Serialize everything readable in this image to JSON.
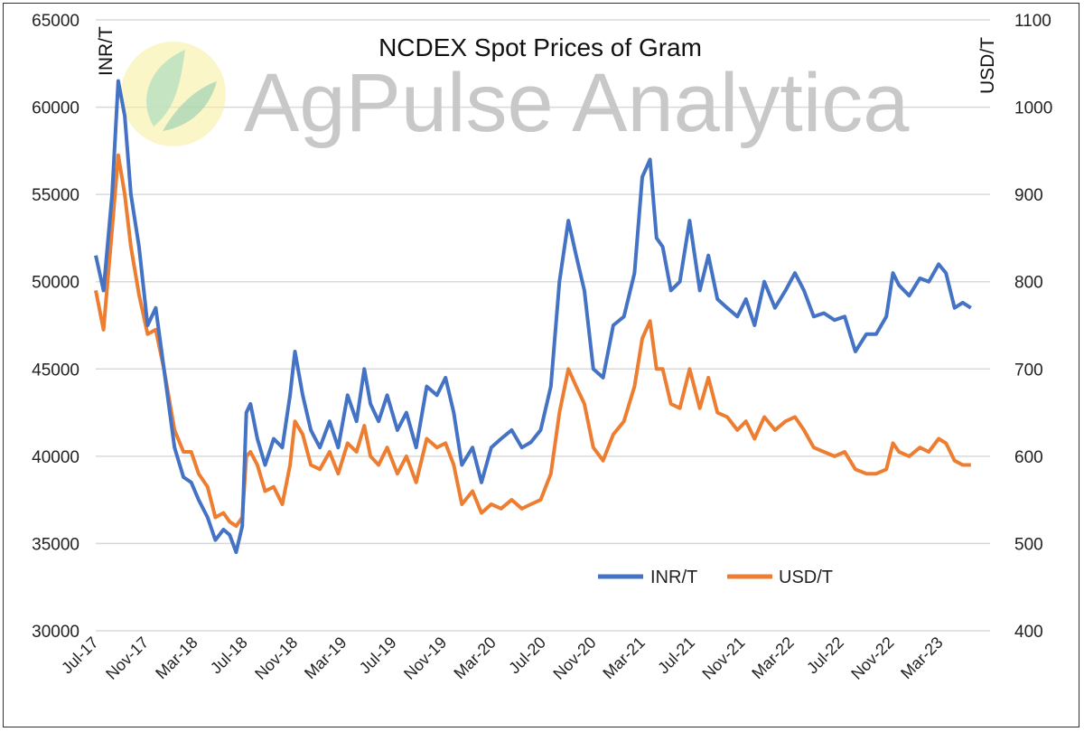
{
  "chart_data": {
    "type": "line",
    "title": "NCDEX Spot Prices of Gram",
    "watermark": "AgPulse Analytica",
    "ylabel_left": "INR/T",
    "ylabel_right": "USD/T",
    "ylim_left": [
      30000,
      65000
    ],
    "ylim_right": [
      400,
      1100
    ],
    "yticks_left": [
      "30000",
      "35000",
      "40000",
      "45000",
      "50000",
      "55000",
      "60000",
      "65000"
    ],
    "yticks_right": [
      "400",
      "500",
      "600",
      "700",
      "800",
      "900",
      "1000",
      "1100"
    ],
    "xticks": [
      "Jul-17",
      "Nov-17",
      "Mar-18",
      "Jul-18",
      "Nov-18",
      "Mar-19",
      "Jul-19",
      "Nov-19",
      "Mar-20",
      "Jul-20",
      "Nov-20",
      "Mar-21",
      "Jul-21",
      "Nov-21",
      "Mar-22",
      "Jul-22",
      "Nov-22",
      "Mar-23"
    ],
    "grid": true,
    "legend_position": "bottom-right",
    "colors": {
      "inr": "#4472C4",
      "usd": "#ED7D31",
      "grid": "#d9d9d9"
    },
    "series": [
      {
        "name": "INR/T",
        "axis": "left",
        "x": [
          "2017-07-01",
          "2017-07-20",
          "2017-08-10",
          "2017-08-25",
          "2017-09-10",
          "2017-09-25",
          "2017-10-15",
          "2017-11-05",
          "2017-11-25",
          "2017-12-15",
          "2018-01-10",
          "2018-02-01",
          "2018-02-20",
          "2018-03-10",
          "2018-04-01",
          "2018-04-20",
          "2018-05-10",
          "2018-05-25",
          "2018-06-10",
          "2018-06-25",
          "2018-07-05",
          "2018-07-15",
          "2018-08-01",
          "2018-08-20",
          "2018-09-10",
          "2018-10-01",
          "2018-10-20",
          "2018-11-01",
          "2018-11-20",
          "2018-12-10",
          "2019-01-01",
          "2019-01-25",
          "2019-02-15",
          "2019-03-10",
          "2019-04-01",
          "2019-04-20",
          "2019-05-05",
          "2019-05-25",
          "2019-06-15",
          "2019-07-10",
          "2019-08-01",
          "2019-08-25",
          "2019-09-20",
          "2019-10-15",
          "2019-11-05",
          "2019-11-25",
          "2019-12-15",
          "2020-01-10",
          "2020-02-01",
          "2020-02-25",
          "2020-03-20",
          "2020-04-15",
          "2020-05-10",
          "2020-06-01",
          "2020-06-25",
          "2020-07-20",
          "2020-08-10",
          "2020-09-01",
          "2020-09-20",
          "2020-10-10",
          "2020-11-01",
          "2020-11-25",
          "2020-12-20",
          "2021-01-15",
          "2021-02-10",
          "2021-03-01",
          "2021-03-20",
          "2021-04-05",
          "2021-04-20",
          "2021-05-10",
          "2021-06-01",
          "2021-06-25",
          "2021-07-20",
          "2021-08-10",
          "2021-09-01",
          "2021-09-25",
          "2021-10-20",
          "2021-11-10",
          "2021-12-01",
          "2021-12-25",
          "2022-01-20",
          "2022-02-15",
          "2022-03-10",
          "2022-04-01",
          "2022-04-25",
          "2022-05-20",
          "2022-06-15",
          "2022-07-10",
          "2022-08-05",
          "2022-09-01",
          "2022-09-25",
          "2022-10-20",
          "2022-11-05",
          "2022-11-20",
          "2022-12-15",
          "2023-01-10",
          "2023-02-01",
          "2023-02-25",
          "2023-03-15",
          "2023-04-05",
          "2023-04-25",
          "2023-05-15"
        ],
        "values": [
          51500,
          49500,
          55000,
          61500,
          59500,
          55000,
          52000,
          47500,
          48500,
          45000,
          40500,
          38800,
          38500,
          37500,
          36500,
          35200,
          35800,
          35500,
          34500,
          36000,
          42500,
          43000,
          41000,
          39500,
          41000,
          40500,
          43500,
          46000,
          43500,
          41500,
          40500,
          42000,
          40500,
          43500,
          42000,
          45000,
          43000,
          42000,
          43500,
          41500,
          42500,
          40500,
          44000,
          43500,
          44500,
          42500,
          39500,
          40500,
          38500,
          40500,
          41000,
          41500,
          40500,
          40800,
          41500,
          44000,
          50000,
          53500,
          51500,
          49500,
          45000,
          44500,
          47500,
          48000,
          50500,
          56000,
          57000,
          52500,
          52000,
          49500,
          50000,
          53500,
          49500,
          51500,
          49000,
          48500,
          48000,
          49000,
          47500,
          50000,
          48500,
          49500,
          50500,
          49500,
          48000,
          48200,
          47800,
          48000,
          46000,
          47000,
          47000,
          48000,
          50500,
          49800,
          49200,
          50200,
          50000,
          51000,
          50500,
          48500,
          48800,
          48500
        ]
      },
      {
        "name": "USD/T",
        "axis": "right",
        "x": [
          "2017-07-01",
          "2017-07-20",
          "2017-08-10",
          "2017-08-25",
          "2017-09-10",
          "2017-09-25",
          "2017-10-15",
          "2017-11-05",
          "2017-11-25",
          "2017-12-15",
          "2018-01-10",
          "2018-02-01",
          "2018-02-20",
          "2018-03-10",
          "2018-04-01",
          "2018-04-20",
          "2018-05-10",
          "2018-05-25",
          "2018-06-10",
          "2018-06-25",
          "2018-07-05",
          "2018-07-15",
          "2018-08-01",
          "2018-08-20",
          "2018-09-10",
          "2018-10-01",
          "2018-10-20",
          "2018-11-01",
          "2018-11-20",
          "2018-12-10",
          "2019-01-01",
          "2019-01-25",
          "2019-02-15",
          "2019-03-10",
          "2019-04-01",
          "2019-04-20",
          "2019-05-05",
          "2019-05-25",
          "2019-06-15",
          "2019-07-10",
          "2019-08-01",
          "2019-08-25",
          "2019-09-20",
          "2019-10-15",
          "2019-11-05",
          "2019-11-25",
          "2019-12-15",
          "2020-01-10",
          "2020-02-01",
          "2020-02-25",
          "2020-03-20",
          "2020-04-15",
          "2020-05-10",
          "2020-06-01",
          "2020-06-25",
          "2020-07-20",
          "2020-08-10",
          "2020-09-01",
          "2020-09-20",
          "2020-10-10",
          "2020-11-01",
          "2020-11-25",
          "2020-12-20",
          "2021-01-15",
          "2021-02-10",
          "2021-03-01",
          "2021-03-20",
          "2021-04-05",
          "2021-04-20",
          "2021-05-10",
          "2021-06-01",
          "2021-06-25",
          "2021-07-20",
          "2021-08-10",
          "2021-09-01",
          "2021-09-25",
          "2021-10-20",
          "2021-11-10",
          "2021-12-01",
          "2021-12-25",
          "2022-01-20",
          "2022-02-15",
          "2022-03-10",
          "2022-04-01",
          "2022-04-25",
          "2022-05-20",
          "2022-06-15",
          "2022-07-10",
          "2022-08-05",
          "2022-09-01",
          "2022-09-25",
          "2022-10-20",
          "2022-11-05",
          "2022-11-20",
          "2022-12-15",
          "2023-01-10",
          "2023-02-01",
          "2023-02-25",
          "2023-03-15",
          "2023-04-05",
          "2023-04-25",
          "2023-05-15"
        ],
        "values": [
          790,
          745,
          860,
          945,
          900,
          840,
          785,
          740,
          745,
          700,
          630,
          605,
          605,
          580,
          565,
          530,
          535,
          525,
          520,
          530,
          600,
          605,
          590,
          560,
          565,
          545,
          590,
          640,
          625,
          590,
          585,
          605,
          580,
          615,
          605,
          635,
          600,
          590,
          610,
          580,
          600,
          570,
          620,
          610,
          615,
          590,
          545,
          560,
          535,
          545,
          540,
          550,
          540,
          545,
          550,
          580,
          650,
          700,
          680,
          660,
          610,
          595,
          625,
          640,
          680,
          735,
          755,
          700,
          700,
          660,
          655,
          700,
          655,
          690,
          650,
          645,
          630,
          640,
          620,
          645,
          630,
          640,
          645,
          630,
          610,
          605,
          600,
          605,
          585,
          580,
          580,
          585,
          615,
          605,
          600,
          610,
          605,
          620,
          615,
          595,
          590,
          590
        ]
      }
    ]
  }
}
